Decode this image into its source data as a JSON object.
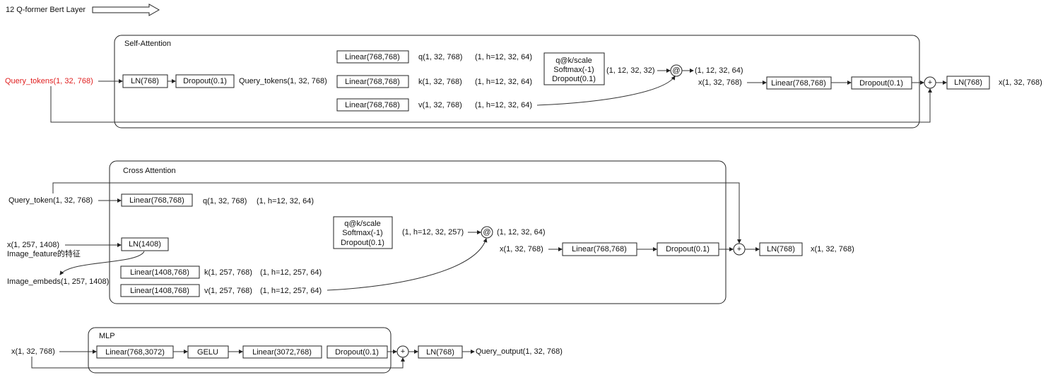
{
  "title": "12 Q-former Bert Layer",
  "colors": {
    "input_highlight": "#e02020",
    "stroke": "#222222"
  },
  "self_attention": {
    "label": "Self-Attention",
    "input": "Query_tokens(1, 32, 768)",
    "ln": "LN(768)",
    "dropout": "Dropout(0.1)",
    "normed": "Query_tokens(1, 32, 768)",
    "linear_q": "Linear(768,768)",
    "linear_k": "Linear(768,768)",
    "linear_v": "Linear(768,768)",
    "q": "q(1, 32, 768)",
    "k": "k(1, 32, 768)",
    "v": "v(1, 32, 768)",
    "q_heads": "(1, h=12, 32, 64)",
    "k_heads": "(1, h=12, 32, 64)",
    "v_heads": "(1, h=12, 32, 64)",
    "attn_lines": [
      "q@k/scale",
      "Softmax(-1)",
      "Dropout(0.1)"
    ],
    "attn_shape": "(1, 12, 32, 32)",
    "matmul": "@",
    "out_shape": "(1, 12, 32, 64)",
    "x_shape": "x(1, 32, 768)",
    "out_linear": "Linear(768,768)",
    "out_dropout": "Dropout(0.1)",
    "plus": "+",
    "out_ln": "LN(768)",
    "output": "x(1, 32, 768)"
  },
  "cross_attention": {
    "label": "Cross Attention",
    "query_input": "Query_token(1, 32, 768)",
    "linear_q": "Linear(768,768)",
    "q": "q(1, 32, 768)",
    "q_heads": "(1, h=12, 32, 64)",
    "image_input": "x(1, 257, 1408)",
    "image_note": "Image_feature的特征",
    "ln": "LN(1408)",
    "image_embeds": "Image_embeds(1, 257, 1408)",
    "linear_k": "Linear(1408,768)",
    "linear_v": "Linear(1408,768)",
    "k": "k(1, 257, 768)",
    "v": "v(1, 257, 768)",
    "k_heads": "(1, h=12, 257, 64)",
    "v_heads": "(1, h=12, 257, 64)",
    "attn_lines": [
      "q@k/scale",
      "Softmax(-1)",
      "Dropout(0.1)"
    ],
    "attn_shape": "(1, h=12, 32, 257)",
    "matmul": "@",
    "out_shape": "(1, 12, 32, 64)",
    "x_shape": "x(1, 32, 768)",
    "out_linear": "Linear(768,768)",
    "out_dropout": "Dropout(0.1)",
    "plus": "+",
    "out_ln": "LN(768)",
    "output": "x(1, 32, 768)"
  },
  "mlp": {
    "label": "MLP",
    "input": "x(1, 32, 768)",
    "linear1": "Linear(768,3072)",
    "gelu": "GELU",
    "linear2": "Linear(3072,768)",
    "dropout": "Dropout(0.1)",
    "plus": "+",
    "ln": "LN(768)",
    "output": "Query_output(1, 32, 768)"
  }
}
